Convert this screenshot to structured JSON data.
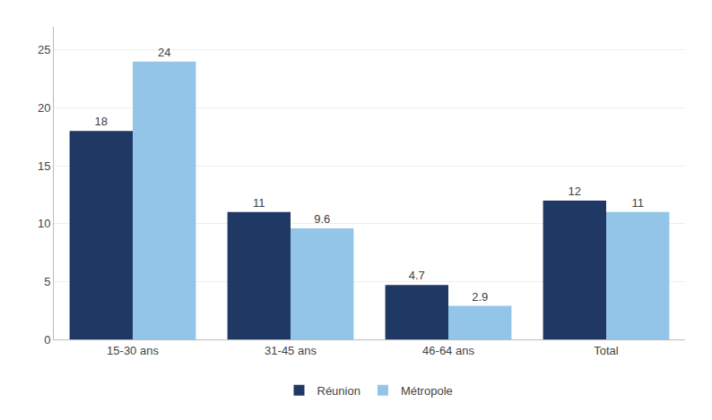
{
  "chart_data": {
    "type": "bar",
    "categories": [
      "15-30 ans",
      "31-45 ans",
      "46-64 ans",
      "Total"
    ],
    "series": [
      {
        "name": "Réunion",
        "color": "#1f3864",
        "values": [
          18,
          11,
          4.7,
          12
        ]
      },
      {
        "name": "Métropole",
        "color": "#92c5e8",
        "values": [
          24,
          9.6,
          2.9,
          11
        ]
      }
    ],
    "ylim": [
      0,
      27
    ],
    "yticks": [
      0,
      5,
      10,
      15,
      20,
      25
    ],
    "grid": true,
    "legend": "bottom",
    "data_labels": true
  }
}
